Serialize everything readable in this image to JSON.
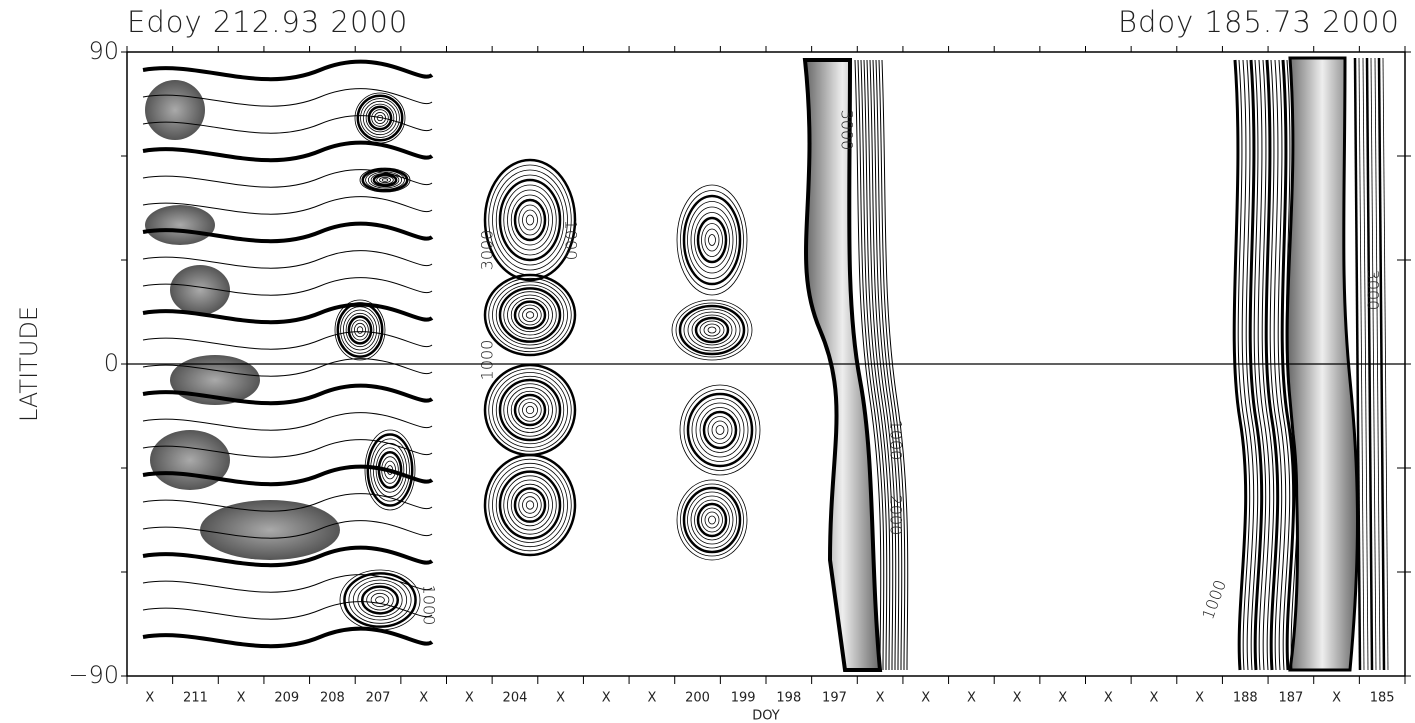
{
  "chart_data": {
    "type": "contour",
    "title_left": "Edoy 212.93 2000",
    "title_right": "Bdoy 185.73 2000",
    "xlabel": "DOY",
    "ylabel": "LATITUDE",
    "categories": [
      "X",
      "211",
      "X",
      "209",
      "208",
      "207",
      "X",
      "X",
      "204",
      "X",
      "X",
      "X",
      "200",
      "199",
      "198",
      "197",
      "X",
      "X",
      "X",
      "X",
      "X",
      "X",
      "X",
      "X",
      "188",
      "187",
      "X",
      "185"
    ],
    "ylim": [
      -90,
      90
    ],
    "yticks": [
      {
        "value": -90,
        "label": "−90"
      },
      0,
      90
    ],
    "contour_labels": [
      "3000",
      "1000",
      "1000",
      "3000",
      "1000",
      "2000",
      "1000",
      "1000",
      "3000"
    ]
  }
}
